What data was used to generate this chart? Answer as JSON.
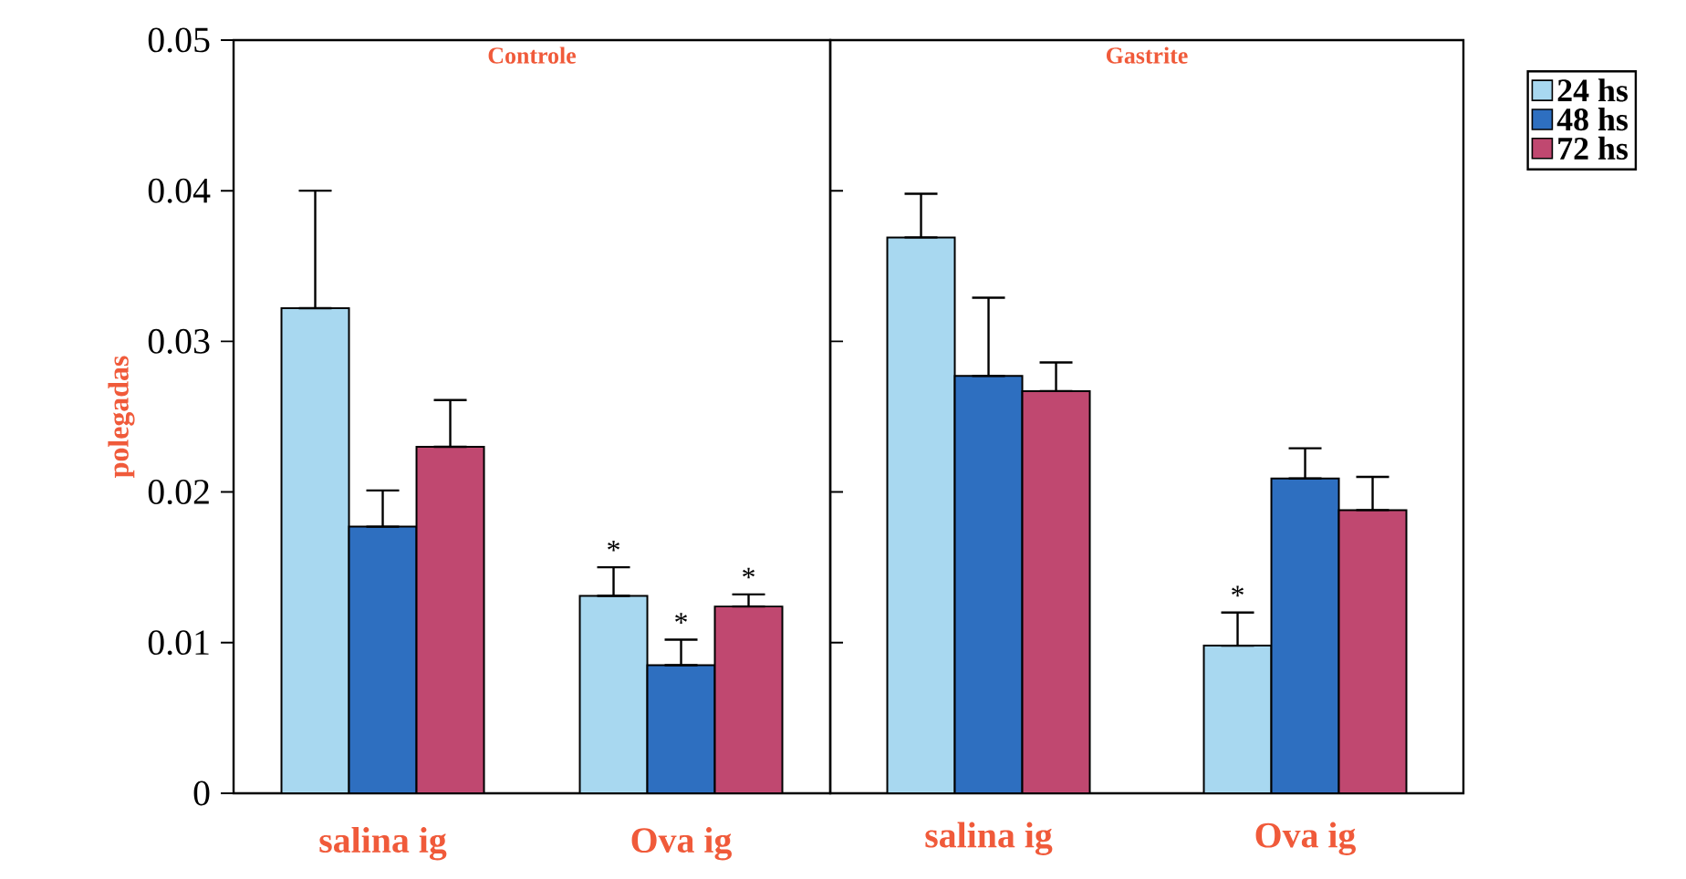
{
  "chart_data": [
    {
      "type": "bar",
      "title": "Controle",
      "ylabel": "polegadas",
      "categories": [
        "salina ig",
        "Ova ig"
      ],
      "ylim": [
        0,
        0.05
      ],
      "yticks": [
        0,
        0.01,
        0.02,
        0.03,
        0.04,
        0.05
      ],
      "grid": false,
      "series": [
        {
          "color": "#a8d8f0",
          "values": [
            0.0322,
            0.0131
          ],
          "errors": [
            [
              0.0322,
              0.04
            ],
            [
              0.0131,
              0.015
            ]
          ],
          "value_labels": [
            null,
            "*"
          ]
        },
        {
          "color": "#2e6fc0",
          "values": [
            0.0177,
            0.0085
          ],
          "errors": [
            [
              0.0177,
              0.0201
            ],
            [
              0.0085,
              0.0102
            ]
          ],
          "value_labels": [
            null,
            "*"
          ]
        },
        {
          "color": "#c04870",
          "values": [
            0.023,
            0.0124
          ],
          "errors": [
            [
              0.023,
              0.0261
            ],
            [
              0.0124,
              0.0132
            ]
          ],
          "value_labels": [
            null,
            "*"
          ]
        }
      ]
    },
    {
      "type": "bar",
      "title": "Gastrite",
      "categories": [
        "salina ig",
        "Ova ig"
      ],
      "ylim": [
        0,
        0.05
      ],
      "tick_labels": "x",
      "grid": false,
      "legend": "right",
      "series": [
        {
          "name": "24 hs",
          "color": "#a8d8f0",
          "values": [
            0.0369,
            0.0098
          ],
          "errors": [
            [
              0.0369,
              0.0398
            ],
            [
              0.0098,
              0.012
            ]
          ],
          "value_labels": [
            null,
            "*"
          ]
        },
        {
          "name": "48 hs",
          "color": "#2e6fc0",
          "values": [
            0.0277,
            0.0209
          ],
          "errors": [
            [
              0.0277,
              0.0329
            ],
            [
              0.0209,
              0.0229
            ]
          ]
        },
        {
          "name": "72 hs",
          "color": "#c04870",
          "values": [
            0.0267,
            0.0188
          ],
          "errors": [
            [
              0.0267,
              0.0286
            ],
            [
              0.0188,
              0.021
            ]
          ]
        }
      ]
    }
  ]
}
